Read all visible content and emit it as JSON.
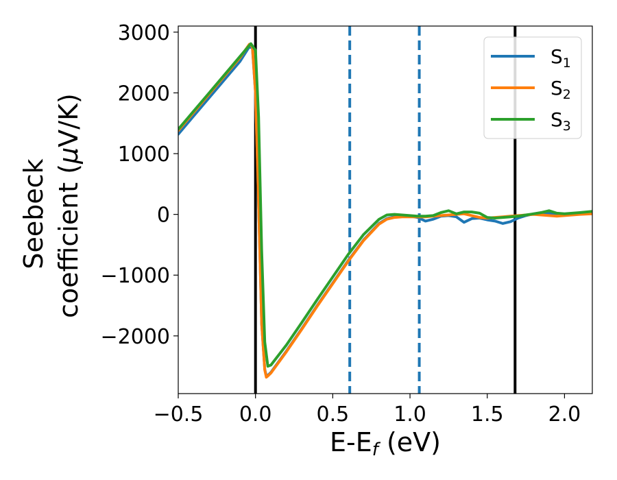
{
  "chart_data": {
    "type": "line",
    "xlabel": "E-E",
    "xlabel_sub": "f",
    "xlabel_unit": " (eV)",
    "ylabel_line1": "Seebeck",
    "ylabel_line2": "coefficient  (",
    "ylabel_mu": "μ",
    "ylabel_unit": "V/K)",
    "xlim": [
      -0.5,
      2.18
    ],
    "ylim": [
      -2950,
      3100
    ],
    "x_ticks": [
      -0.5,
      0.0,
      0.5,
      1.0,
      1.5,
      2.0
    ],
    "x_tick_labels": [
      "−0.5",
      "0.0",
      "0.5",
      "1.0",
      "1.5",
      "2.0"
    ],
    "y_ticks": [
      -2000,
      -1000,
      0,
      1000,
      2000,
      3000
    ],
    "y_tick_labels": [
      "−2000",
      "−1000",
      "0",
      "1000",
      "2000",
      "3000"
    ],
    "grid": false,
    "legend_position": "top-right",
    "vertical_lines": [
      {
        "x": 0.0,
        "style": "solid",
        "color": "#000000"
      },
      {
        "x": 1.68,
        "style": "solid",
        "color": "#000000"
      },
      {
        "x": 0.61,
        "style": "dashed",
        "color": "#1f77b4"
      },
      {
        "x": 1.06,
        "style": "dashed",
        "color": "#1f77b4"
      }
    ],
    "series": [
      {
        "name": "S",
        "sub": "1",
        "color": "#1f77b4",
        "x": [
          -0.5,
          -0.4,
          -0.3,
          -0.2,
          -0.1,
          -0.04,
          -0.02,
          0.0,
          0.02,
          0.04,
          0.06,
          0.07,
          0.08,
          0.1,
          0.2,
          0.3,
          0.4,
          0.5,
          0.6,
          0.7,
          0.8,
          0.85,
          0.9,
          0.95,
          1.0,
          1.05,
          1.1,
          1.15,
          1.2,
          1.25,
          1.3,
          1.35,
          1.4,
          1.45,
          1.5,
          1.55,
          1.6,
          1.65,
          1.7,
          1.75,
          1.8,
          1.85,
          1.9,
          1.95,
          2.0,
          2.1,
          2.18
        ],
        "y": [
          1320,
          1620,
          1920,
          2220,
          2520,
          2760,
          2740,
          2000,
          200,
          -1800,
          -2550,
          -2660,
          -2650,
          -2600,
          -2250,
          -1880,
          -1500,
          -1130,
          -760,
          -420,
          -150,
          -70,
          -40,
          -30,
          -30,
          -50,
          -110,
          -80,
          -30,
          -20,
          -40,
          -130,
          -70,
          -60,
          -90,
          -110,
          -150,
          -120,
          -60,
          -20,
          10,
          30,
          20,
          0,
          0,
          10,
          20
        ]
      },
      {
        "name": "S",
        "sub": "2",
        "color": "#ff7f0e",
        "x": [
          -0.5,
          -0.4,
          -0.3,
          -0.2,
          -0.1,
          -0.04,
          -0.02,
          0.0,
          0.02,
          0.04,
          0.06,
          0.07,
          0.08,
          0.1,
          0.2,
          0.3,
          0.4,
          0.5,
          0.6,
          0.7,
          0.8,
          0.85,
          0.9,
          0.95,
          1.0,
          1.05,
          1.1,
          1.15,
          1.2,
          1.25,
          1.3,
          1.35,
          1.4,
          1.45,
          1.5,
          1.55,
          1.6,
          1.65,
          1.7,
          1.75,
          1.8,
          1.85,
          1.9,
          1.95,
          2.0,
          2.1,
          2.18
        ],
        "y": [
          1380,
          1680,
          1980,
          2280,
          2580,
          2800,
          2760,
          2000,
          200,
          -1800,
          -2560,
          -2680,
          -2660,
          -2610,
          -2260,
          -1890,
          -1510,
          -1140,
          -770,
          -430,
          -160,
          -80,
          -50,
          -40,
          -40,
          -40,
          -40,
          -30,
          -20,
          -10,
          0,
          10,
          -20,
          -50,
          -60,
          -50,
          -40,
          -30,
          -20,
          -10,
          0,
          -10,
          -20,
          -30,
          -20,
          0,
          10
        ]
      },
      {
        "name": "S",
        "sub": "3",
        "color": "#2ca02c",
        "x": [
          -0.5,
          -0.4,
          -0.3,
          -0.2,
          -0.1,
          -0.03,
          0.0,
          0.02,
          0.04,
          0.06,
          0.08,
          0.1,
          0.2,
          0.3,
          0.4,
          0.5,
          0.6,
          0.7,
          0.8,
          0.85,
          0.9,
          0.95,
          1.0,
          1.05,
          1.1,
          1.15,
          1.2,
          1.25,
          1.3,
          1.35,
          1.4,
          1.45,
          1.5,
          1.55,
          1.6,
          1.65,
          1.7,
          1.75,
          1.8,
          1.85,
          1.9,
          1.95,
          2.0,
          2.1,
          2.18
        ],
        "y": [
          1400,
          1700,
          2000,
          2300,
          2600,
          2810,
          2700,
          1600,
          -600,
          -2100,
          -2500,
          -2480,
          -2150,
          -1780,
          -1400,
          -1030,
          -660,
          -330,
          -80,
          -10,
          0,
          -10,
          -20,
          -30,
          -30,
          -20,
          30,
          60,
          10,
          40,
          40,
          20,
          -50,
          -60,
          -50,
          -40,
          -30,
          -10,
          10,
          30,
          60,
          20,
          10,
          30,
          50
        ]
      }
    ]
  }
}
